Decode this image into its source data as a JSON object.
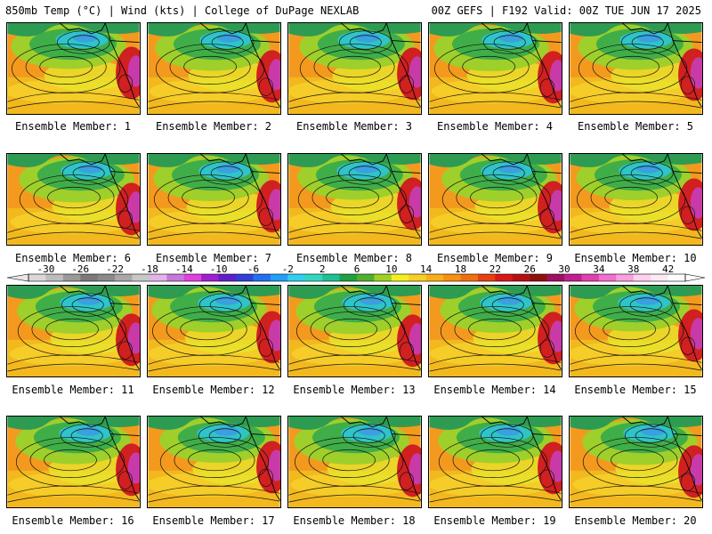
{
  "header": {
    "left": "850mb Temp (°C) | Wind (kts) | College of DuPage NEXLAB",
    "right": "00Z GEFS | F192 Valid: 00Z TUE JUN 17 2025"
  },
  "members": [
    "Ensemble Member: 1",
    "Ensemble Member: 2",
    "Ensemble Member: 3",
    "Ensemble Member: 4",
    "Ensemble Member: 5",
    "Ensemble Member: 6",
    "Ensemble Member: 7",
    "Ensemble Member: 8",
    "Ensemble Member: 9",
    "Ensemble Member: 10",
    "Ensemble Member: 11",
    "Ensemble Member: 12",
    "Ensemble Member: 13",
    "Ensemble Member: 14",
    "Ensemble Member: 15",
    "Ensemble Member: 16",
    "Ensemble Member: 17",
    "Ensemble Member: 18",
    "Ensemble Member: 19",
    "Ensemble Member: 20"
  ],
  "colorbar": {
    "labels": [
      "-30",
      "-26",
      "-22",
      "-18",
      "-14",
      "-10",
      "-6",
      "-2",
      "2",
      "6",
      "10",
      "14",
      "18",
      "22",
      "26",
      "30",
      "34",
      "38",
      "42"
    ],
    "colors": [
      "#d9d9d9",
      "#bdbdbd",
      "#9a9a9a",
      "#7a7a7a",
      "#8a8a8a",
      "#a8a8a8",
      "#c8c8c8",
      "#e0b4e8",
      "#c878d8",
      "#e040e0",
      "#a020d0",
      "#6020c8",
      "#3040d8",
      "#2070f0",
      "#20a0f8",
      "#30d0f0",
      "#30d8c0",
      "#20c090",
      "#20a040",
      "#50b030",
      "#a0d020",
      "#f0f020",
      "#f8d020",
      "#f8b018",
      "#f89010",
      "#f07010",
      "#e84010",
      "#d81818",
      "#b81010",
      "#901010",
      "#a01060",
      "#c02090",
      "#e040b0",
      "#f070d0",
      "#f8a0e0",
      "#ffd0f0",
      "#ffe8f8",
      "#ffffff"
    ],
    "min": -32,
    "max": 44
  }
}
